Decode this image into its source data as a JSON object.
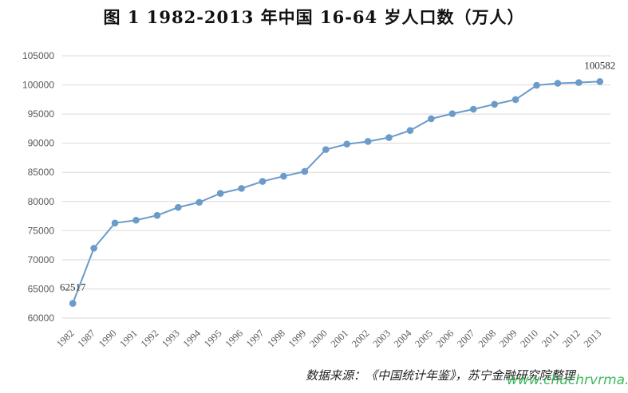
{
  "title": "图 1    1982-2013 年中国 16-64 岁人口数（万人）",
  "source_note": "数据来源：《中国统计年鉴》，苏宁金融研究院整理",
  "watermark": "www.chuchrvrma.com",
  "colors": {
    "series": "#6b9bc9",
    "grid": "#d9d9d9",
    "axis_text": "#595959"
  },
  "chart_data": {
    "type": "line",
    "title": "图 1    1982-2013 年中国 16-64 岁人口数（万人）",
    "xlabel": "",
    "ylabel": "",
    "categories": [
      "1982",
      "1987",
      "1990",
      "1991",
      "1992",
      "1993",
      "1994",
      "1995",
      "1996",
      "1997",
      "1998",
      "1999",
      "2000",
      "2001",
      "2002",
      "2003",
      "2004",
      "2005",
      "2006",
      "2007",
      "2008",
      "2009",
      "2010",
      "2011",
      "2012",
      "2013"
    ],
    "y_ticks": [
      "60000",
      "65000",
      "70000",
      "75000",
      "80000",
      "85000",
      "90000",
      "95000",
      "100000",
      "105000"
    ],
    "ylim": [
      60000,
      105000
    ],
    "grid": true,
    "legend": "none",
    "series": [
      {
        "values": [
          62517,
          71985,
          76306,
          76791,
          77614,
          78993,
          79868,
          81393,
          82245,
          83448,
          84338,
          85157,
          88910,
          89849,
          90302,
          90976,
          92184,
          94197,
          95068,
          95833,
          96680,
          97484,
          99938,
          100283,
          100403,
          100582
        ]
      }
    ],
    "data_labels": [
      {
        "index": 0,
        "text": "62517"
      },
      {
        "index": 25,
        "text": "100582"
      }
    ]
  }
}
